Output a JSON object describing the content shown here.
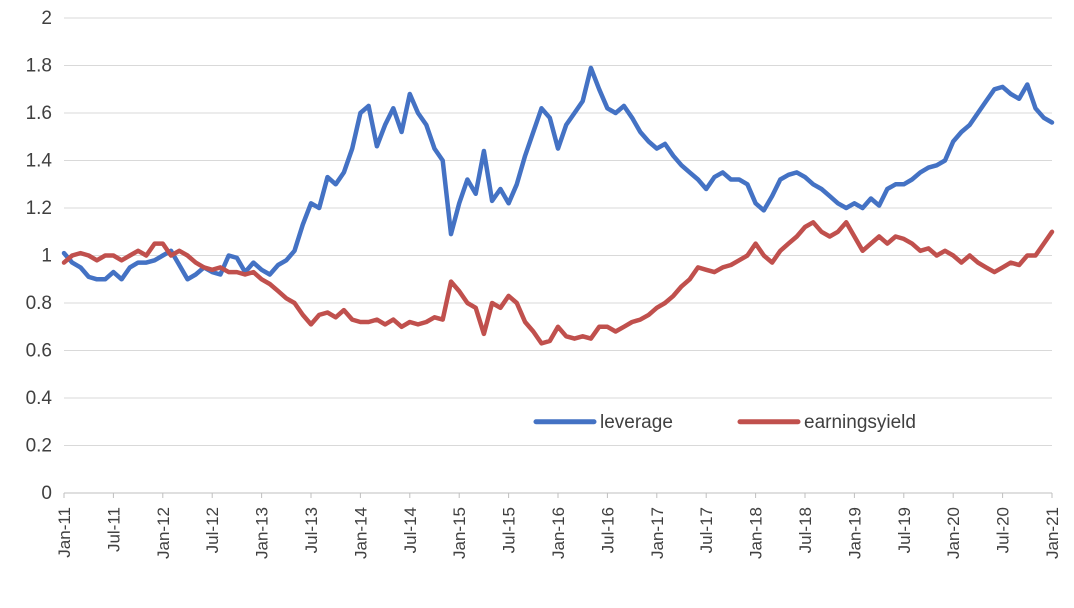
{
  "chart_data": {
    "type": "line",
    "title": "",
    "xlabel": "",
    "ylabel": "",
    "ylim": [
      0,
      2
    ],
    "yticks": [
      0,
      0.2,
      0.4,
      0.6,
      0.8,
      1,
      1.2,
      1.4,
      1.6,
      1.8,
      2
    ],
    "ytick_labels": [
      "0",
      "0.2",
      "0.4",
      "0.6",
      "0.8",
      "1",
      "1.2",
      "1.4",
      "1.6",
      "1.8",
      "2"
    ],
    "grid": true,
    "legend_position": "inside-bottom-center",
    "n_points": 121,
    "x_tick_every": 6,
    "x_tick_labels": [
      "Jan-11",
      "Jul-11",
      "Jan-12",
      "Jul-12",
      "Jan-13",
      "Jul-13",
      "Jan-14",
      "Jul-14",
      "Jan-15",
      "Jul-15",
      "Jan-16",
      "Jul-16",
      "Jan-17",
      "Jul-17",
      "Jan-18",
      "Jul-18",
      "Jan-19",
      "Jul-19",
      "Jan-20",
      "Jul-20",
      "Jan-21"
    ],
    "colors": {
      "leverage": "#4472C4",
      "earningsyield": "#C0504D",
      "gridline": "#D9D9D9",
      "axis": "#BFBFBF",
      "text": "#404040"
    },
    "series": [
      {
        "name": "leverage",
        "color": "#4472C4",
        "values": [
          1.01,
          0.97,
          0.95,
          0.91,
          0.9,
          0.9,
          0.93,
          0.9,
          0.95,
          0.97,
          0.97,
          0.98,
          1.0,
          1.02,
          0.96,
          0.9,
          0.92,
          0.95,
          0.93,
          0.92,
          1.0,
          0.99,
          0.93,
          0.97,
          0.94,
          0.92,
          0.96,
          0.98,
          1.02,
          1.13,
          1.22,
          1.2,
          1.33,
          1.3,
          1.35,
          1.45,
          1.6,
          1.63,
          1.46,
          1.55,
          1.62,
          1.52,
          1.68,
          1.6,
          1.55,
          1.45,
          1.4,
          1.09,
          1.22,
          1.32,
          1.26,
          1.44,
          1.23,
          1.28,
          1.22,
          1.3,
          1.42,
          1.52,
          1.62,
          1.58,
          1.45,
          1.55,
          1.6,
          1.65,
          1.79,
          1.7,
          1.62,
          1.6,
          1.63,
          1.58,
          1.52,
          1.48,
          1.45,
          1.47,
          1.42,
          1.38,
          1.35,
          1.32,
          1.28,
          1.33,
          1.35,
          1.32,
          1.32,
          1.3,
          1.22,
          1.19,
          1.25,
          1.32,
          1.34,
          1.35,
          1.33,
          1.3,
          1.28,
          1.25,
          1.22,
          1.2,
          1.22,
          1.2,
          1.24,
          1.21,
          1.28,
          1.3,
          1.3,
          1.32,
          1.35,
          1.37,
          1.38,
          1.4,
          1.48,
          1.52,
          1.55,
          1.6,
          1.65,
          1.7,
          1.71,
          1.68,
          1.66,
          1.72,
          1.62,
          1.58,
          1.56
        ]
      },
      {
        "name": "earningsyield",
        "color": "#C0504D",
        "values": [
          0.97,
          1.0,
          1.01,
          1.0,
          0.98,
          1.0,
          1.0,
          0.98,
          1.0,
          1.02,
          1.0,
          1.05,
          1.05,
          1.0,
          1.02,
          1.0,
          0.97,
          0.95,
          0.94,
          0.95,
          0.93,
          0.93,
          0.92,
          0.93,
          0.9,
          0.88,
          0.85,
          0.82,
          0.8,
          0.75,
          0.71,
          0.75,
          0.76,
          0.74,
          0.77,
          0.73,
          0.72,
          0.72,
          0.73,
          0.71,
          0.73,
          0.7,
          0.72,
          0.71,
          0.72,
          0.74,
          0.73,
          0.89,
          0.85,
          0.8,
          0.78,
          0.67,
          0.8,
          0.78,
          0.83,
          0.8,
          0.72,
          0.68,
          0.63,
          0.64,
          0.7,
          0.66,
          0.65,
          0.66,
          0.65,
          0.7,
          0.7,
          0.68,
          0.7,
          0.72,
          0.73,
          0.75,
          0.78,
          0.8,
          0.83,
          0.87,
          0.9,
          0.95,
          0.94,
          0.93,
          0.95,
          0.96,
          0.98,
          1.0,
          1.05,
          1.0,
          0.97,
          1.02,
          1.05,
          1.08,
          1.12,
          1.14,
          1.1,
          1.08,
          1.1,
          1.14,
          1.08,
          1.02,
          1.05,
          1.08,
          1.05,
          1.08,
          1.07,
          1.05,
          1.02,
          1.03,
          1.0,
          1.02,
          1.0,
          0.97,
          1.0,
          0.97,
          0.95,
          0.93,
          0.95,
          0.97,
          0.96,
          1.0,
          1.0,
          1.05,
          1.1
        ]
      }
    ],
    "legend": {
      "items": [
        {
          "label": "leverage",
          "color": "#4472C4"
        },
        {
          "label": "earningsyield",
          "color": "#C0504D"
        }
      ]
    }
  }
}
